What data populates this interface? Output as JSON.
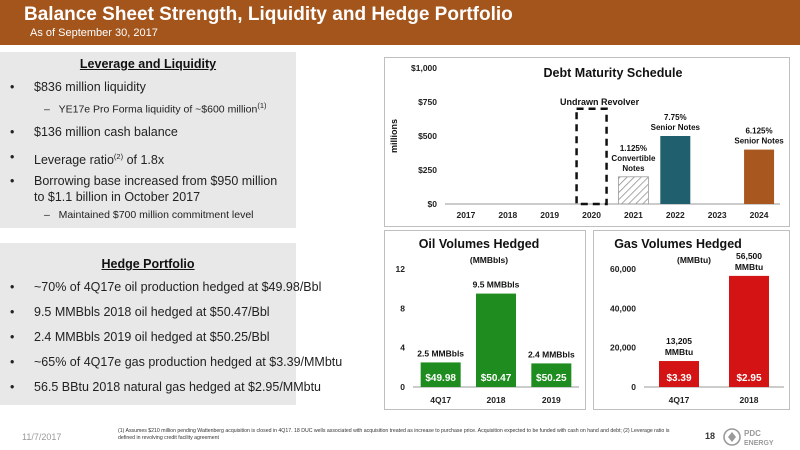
{
  "header": {
    "title": "Balance Sheet Strength, Liquidity and Hedge Portfolio",
    "subtitle": "As of September 30, 2017",
    "color": "#a3551c"
  },
  "leverage": {
    "heading": "Leverage and Liquidity",
    "b1": "$836 million liquidity",
    "b1_sub": "YE17e Pro Forma liquidity of ~$600 million",
    "b1_sub_sup": "(1)",
    "b2": "$136 million cash balance",
    "b3_pre": "Leverage ratio",
    "b3_sup": "(2)",
    "b3_post": " of 1.8x",
    "b4_line1": "Borrowing base increased from $950 million",
    "b4_line2": "to $1.1 billion in October 2017",
    "b4_sub": "Maintained $700 million commitment level"
  },
  "hedge": {
    "heading": "Hedge Portfolio",
    "items": [
      "~70% of 4Q17e oil production hedged at $49.98/Bbl",
      "9.5 MMBbls 2018 oil hedged at $50.47/Bbl",
      "2.4 MMBbls 2019 oil hedged at $50.25/Bbl",
      "~65% of 4Q17e gas production hedged at $3.39/MMbtu",
      "56.5 BBtu 2018 natural gas hedged at $2.95/MMbtu"
    ]
  },
  "chart_data": [
    {
      "type": "bar",
      "title": "Debt Maturity Schedule",
      "ylabel": "millions",
      "categories": [
        "2017",
        "2018",
        "2019",
        "2020",
        "2021",
        "2022",
        "2023",
        "2024"
      ],
      "ylim": [
        0,
        1000
      ],
      "yticks": [
        "$0",
        "$250",
        "$500",
        "$750",
        "$1,000"
      ],
      "ytick_values": [
        0,
        250,
        500,
        750,
        1000
      ],
      "bars": [
        {
          "category": "2020",
          "value": 700,
          "style": "dashed-outline",
          "label": "Undrawn Revolver"
        },
        {
          "category": "2021",
          "value": 200,
          "style": "hatched",
          "label_lines": [
            "1.125%",
            "Convertible",
            "Notes"
          ]
        },
        {
          "category": "2022",
          "value": 500,
          "color": "#1f5f6e",
          "label_lines": [
            "7.75%",
            "Senior Notes"
          ]
        },
        {
          "category": "2024",
          "value": 400,
          "color": "#a8581f",
          "label_lines": [
            "6.125%",
            "Senior Notes"
          ]
        }
      ]
    },
    {
      "type": "bar",
      "title": "Oil Volumes Hedged",
      "unit": "(MMBbls)",
      "categories": [
        "4Q17",
        "2018",
        "2019"
      ],
      "values": [
        2.5,
        9.5,
        2.4
      ],
      "value_labels": [
        "2.5 MMBbls",
        "9.5 MMBbls",
        "2.4 MMBbls"
      ],
      "price_labels": [
        "$49.98",
        "$50.47",
        "$50.25"
      ],
      "color": "#1e8c1e",
      "ylim": [
        0,
        12
      ],
      "yticks": [
        "0",
        "4",
        "8",
        "12"
      ],
      "ytick_values": [
        0,
        4,
        8,
        12
      ]
    },
    {
      "type": "bar",
      "title": "Gas Volumes Hedged",
      "unit": "(MMBtu)",
      "categories": [
        "4Q17",
        "2018"
      ],
      "values": [
        13205,
        56500
      ],
      "value_labels": [
        [
          "13,205",
          "MMBtu"
        ],
        [
          "56,500",
          "MMBtu"
        ]
      ],
      "price_labels": [
        "$3.39",
        "$2.95"
      ],
      "color": "#d41414",
      "ylim": [
        0,
        60000
      ],
      "yticks": [
        "0",
        "20,000",
        "40,000",
        "60,000"
      ],
      "ytick_values": [
        0,
        20000,
        40000,
        60000
      ]
    }
  ],
  "footer": {
    "date": "11/7/2017",
    "footnote": "(1) Assumes $210 million pending Wattenberg acquisition is closed in 4Q17. 18 DUC wells associated with acquisition treated as increase to purchase price. Acquisition expected to be funded with cash on hand and debt; (2) Leverage ratio is defined in revolving credit facility agreement",
    "page": "18",
    "logo_text": "PDC",
    "logo_sub": "ENERGY"
  }
}
